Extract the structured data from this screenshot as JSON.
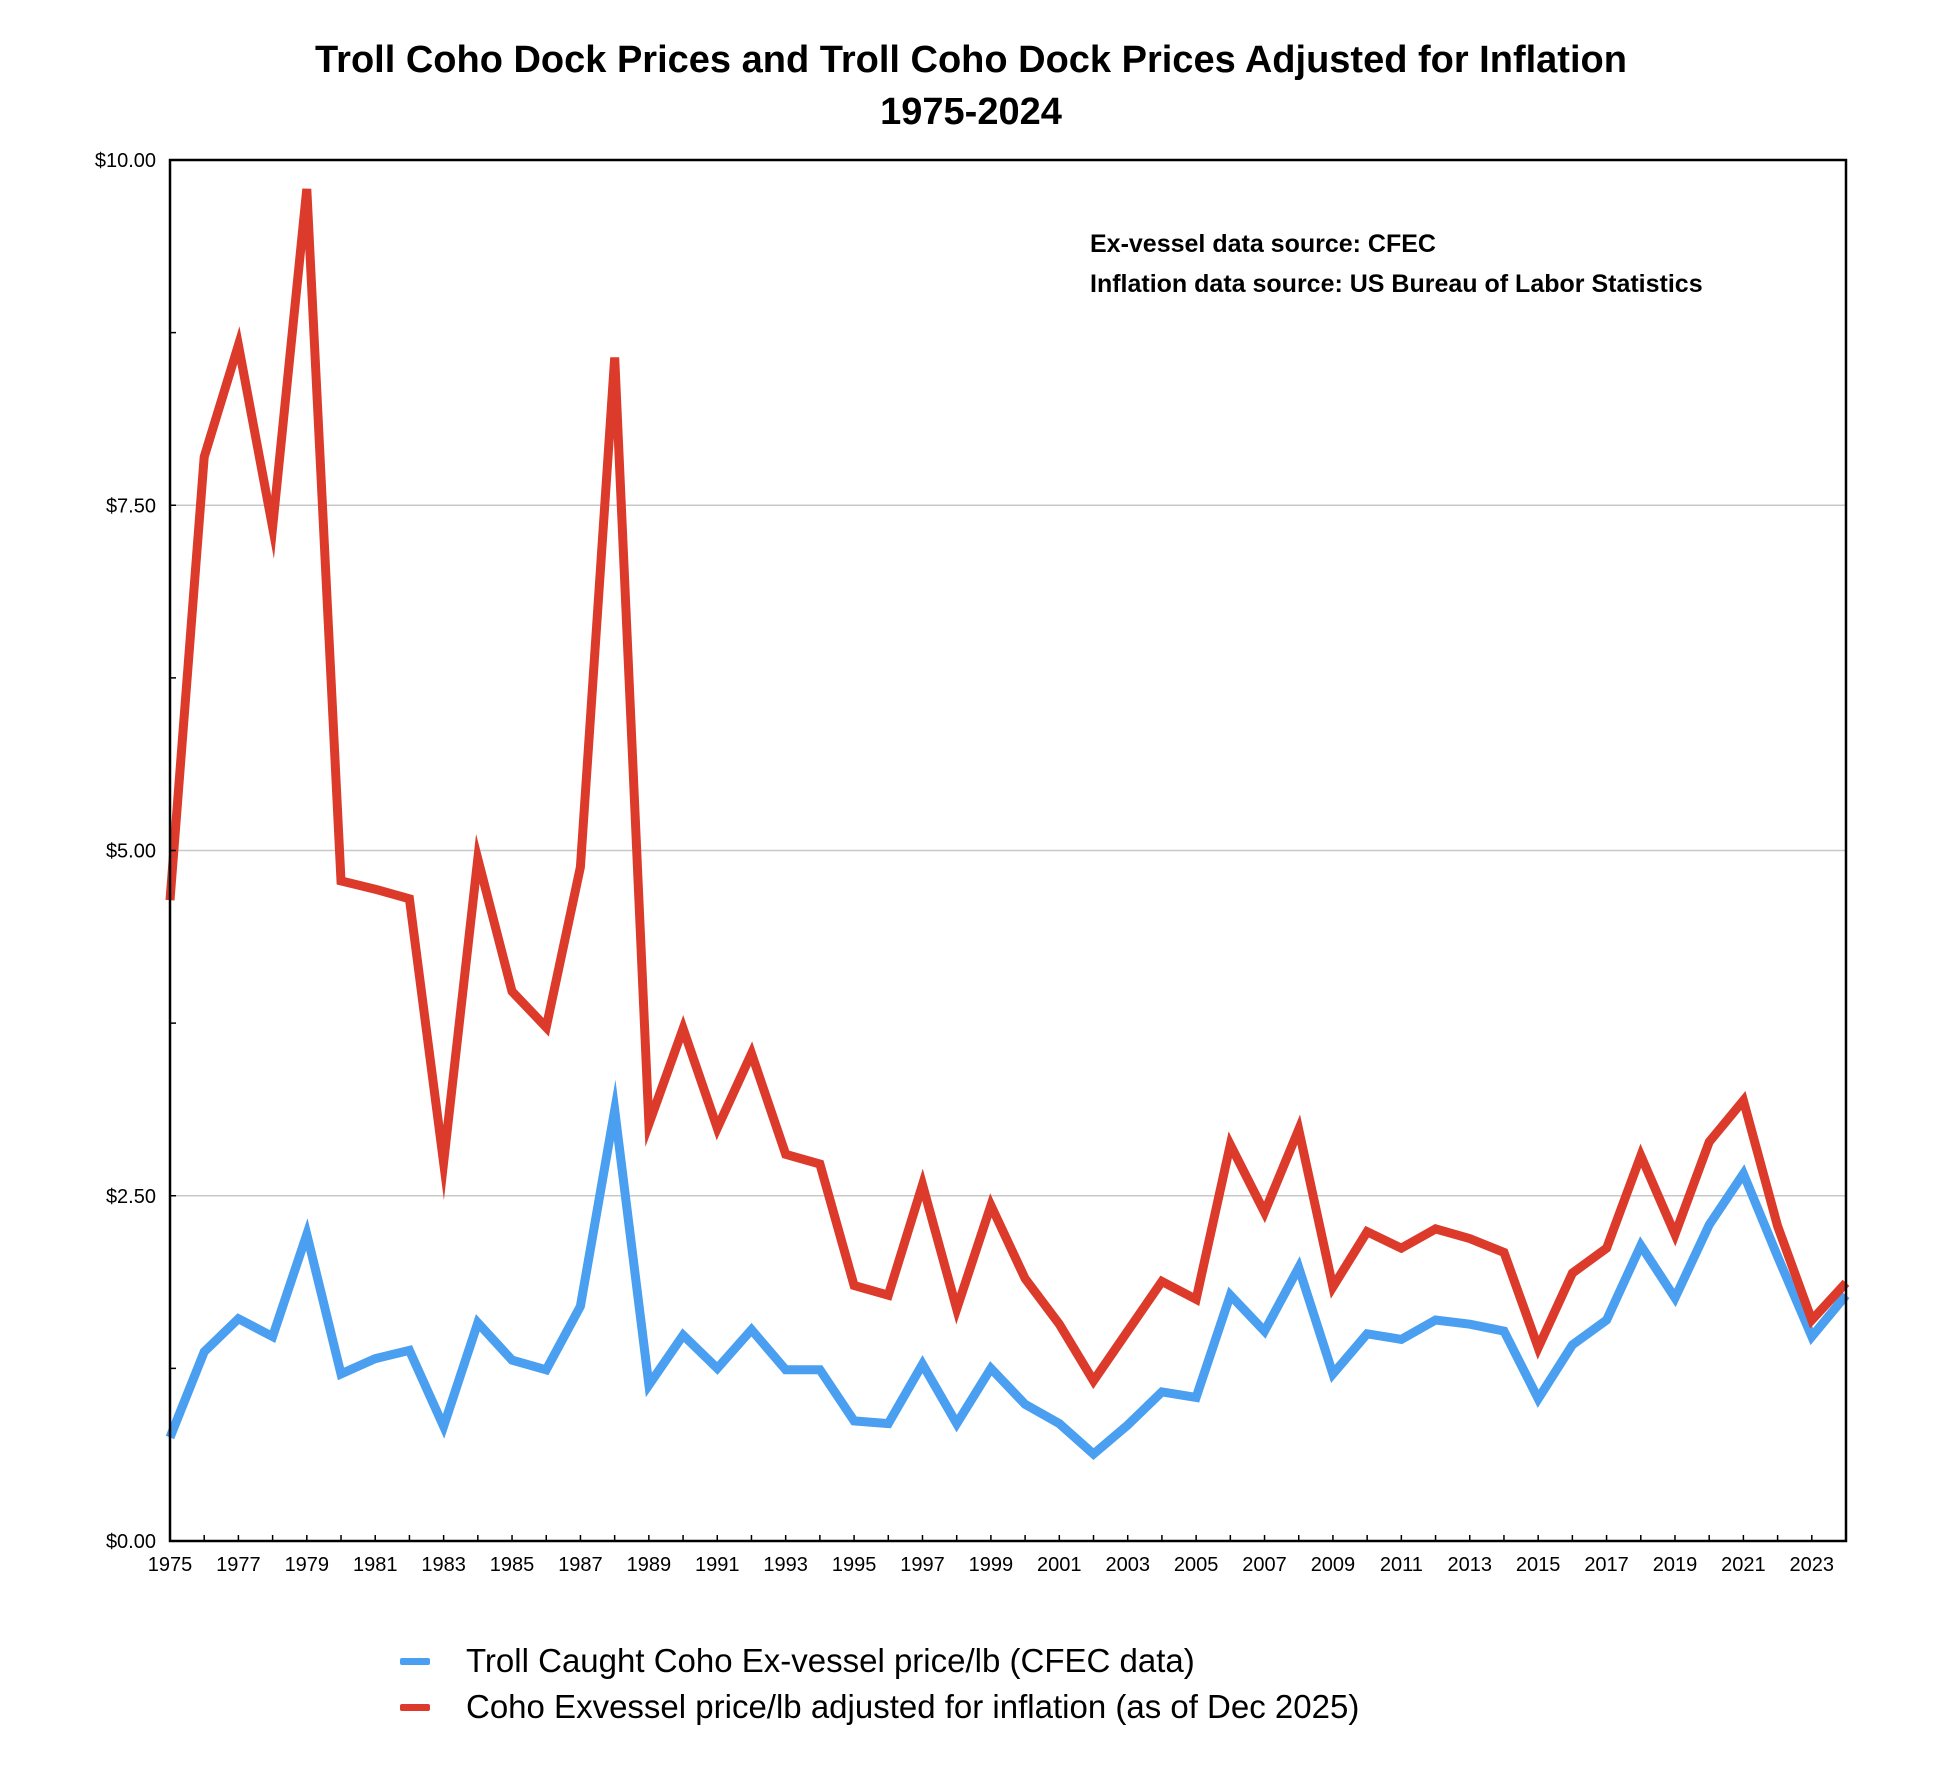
{
  "chart_data": {
    "type": "line",
    "title": "Troll Coho Dock Prices and Troll Coho Dock Prices Adjusted for Inflation",
    "subtitle": "1975-2024",
    "xlabel": "",
    "ylabel": "",
    "ylim": [
      0,
      10
    ],
    "yticks": [
      0,
      2.5,
      5,
      7.5,
      10
    ],
    "ytick_labels": [
      "$0.00",
      "$2.50",
      "$5.00",
      "$7.50",
      "$10.00"
    ],
    "x": [
      1975,
      1976,
      1977,
      1978,
      1979,
      1980,
      1981,
      1982,
      1983,
      1984,
      1985,
      1986,
      1987,
      1988,
      1989,
      1990,
      1991,
      1992,
      1993,
      1994,
      1995,
      1996,
      1997,
      1998,
      1999,
      2000,
      2001,
      2002,
      2003,
      2004,
      2005,
      2006,
      2007,
      2008,
      2009,
      2010,
      2011,
      2012,
      2013,
      2014,
      2015,
      2016,
      2017,
      2018,
      2019,
      2020,
      2021,
      2022,
      2023,
      2024
    ],
    "xtick_labels": [
      "1975",
      "1977",
      "1979",
      "1981",
      "1983",
      "1985",
      "1987",
      "1989",
      "1991",
      "1993",
      "1995",
      "1997",
      "1999",
      "2001",
      "2003",
      "2005",
      "2007",
      "2009",
      "2011",
      "2013",
      "2015",
      "2017",
      "2019",
      "2021",
      "2023"
    ],
    "series": [
      {
        "name": "Troll Caught Coho Ex-vessel price/lb (CFEC data)",
        "color": "#4a9ff0",
        "values": [
          0.75,
          1.37,
          1.61,
          1.48,
          2.22,
          1.21,
          1.32,
          1.38,
          0.83,
          1.58,
          1.31,
          1.24,
          1.7,
          3.12,
          1.13,
          1.49,
          1.25,
          1.53,
          1.24,
          1.24,
          0.87,
          0.85,
          1.28,
          0.85,
          1.25,
          0.99,
          0.85,
          0.63,
          0.84,
          1.08,
          1.04,
          1.78,
          1.52,
          1.98,
          1.21,
          1.5,
          1.46,
          1.6,
          1.57,
          1.52,
          1.03,
          1.42,
          1.6,
          2.14,
          1.76,
          2.29,
          2.66,
          2.06,
          1.48,
          1.78
        ]
      },
      {
        "name": "Coho Exvessel price/lb adjusted for inflation (as of Dec 2025)",
        "color": "#dc3a2a",
        "values": [
          4.64,
          7.85,
          8.66,
          7.34,
          9.79,
          4.78,
          4.72,
          4.65,
          2.74,
          4.94,
          3.98,
          3.72,
          4.88,
          8.57,
          3.02,
          3.71,
          2.99,
          3.53,
          2.8,
          2.73,
          1.85,
          1.78,
          2.58,
          1.68,
          2.43,
          1.9,
          1.57,
          1.16,
          1.52,
          1.88,
          1.75,
          2.87,
          2.38,
          2.98,
          1.84,
          2.24,
          2.12,
          2.26,
          2.19,
          2.09,
          1.4,
          1.94,
          2.12,
          2.79,
          2.22,
          2.89,
          3.19,
          2.28,
          1.6,
          1.87
        ]
      }
    ],
    "annotations": [
      "Ex-vessel data source: CFEC",
      "Inflation data source: US Bureau of Labor Statistics"
    ],
    "legend_position": "bottom",
    "grid": true
  }
}
